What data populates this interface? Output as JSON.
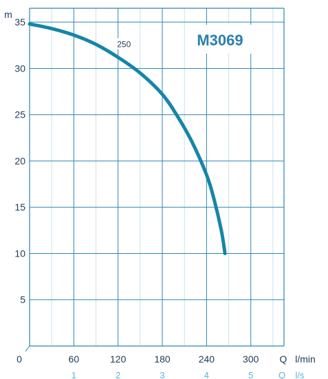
{
  "chart_data": {
    "type": "line",
    "title": "M3069",
    "ylabel": "m",
    "xlabel": "Q",
    "x_unit": "l/min",
    "x2_label": "Q",
    "x2_unit": "l/s",
    "xlim": [
      0,
      345
    ],
    "ylim": [
      0,
      36.5
    ],
    "x_ticks": [
      60,
      120,
      180,
      240,
      300
    ],
    "x_origin_label": "0",
    "x2_ticks": [
      1,
      2,
      3,
      4,
      5
    ],
    "y_ticks": [
      5,
      10,
      15,
      20,
      25,
      30,
      35
    ],
    "grid": true,
    "series": [
      {
        "name": "250",
        "color": "#1685a8",
        "x": [
          0,
          30,
          60,
          90,
          120,
          150,
          180,
          200,
          220,
          240,
          250,
          260,
          265
        ],
        "y": [
          34.8,
          34.3,
          33.6,
          32.6,
          31.2,
          29.5,
          27.2,
          24.9,
          22.1,
          18.5,
          15.9,
          12.5,
          10.0
        ]
      }
    ]
  }
}
